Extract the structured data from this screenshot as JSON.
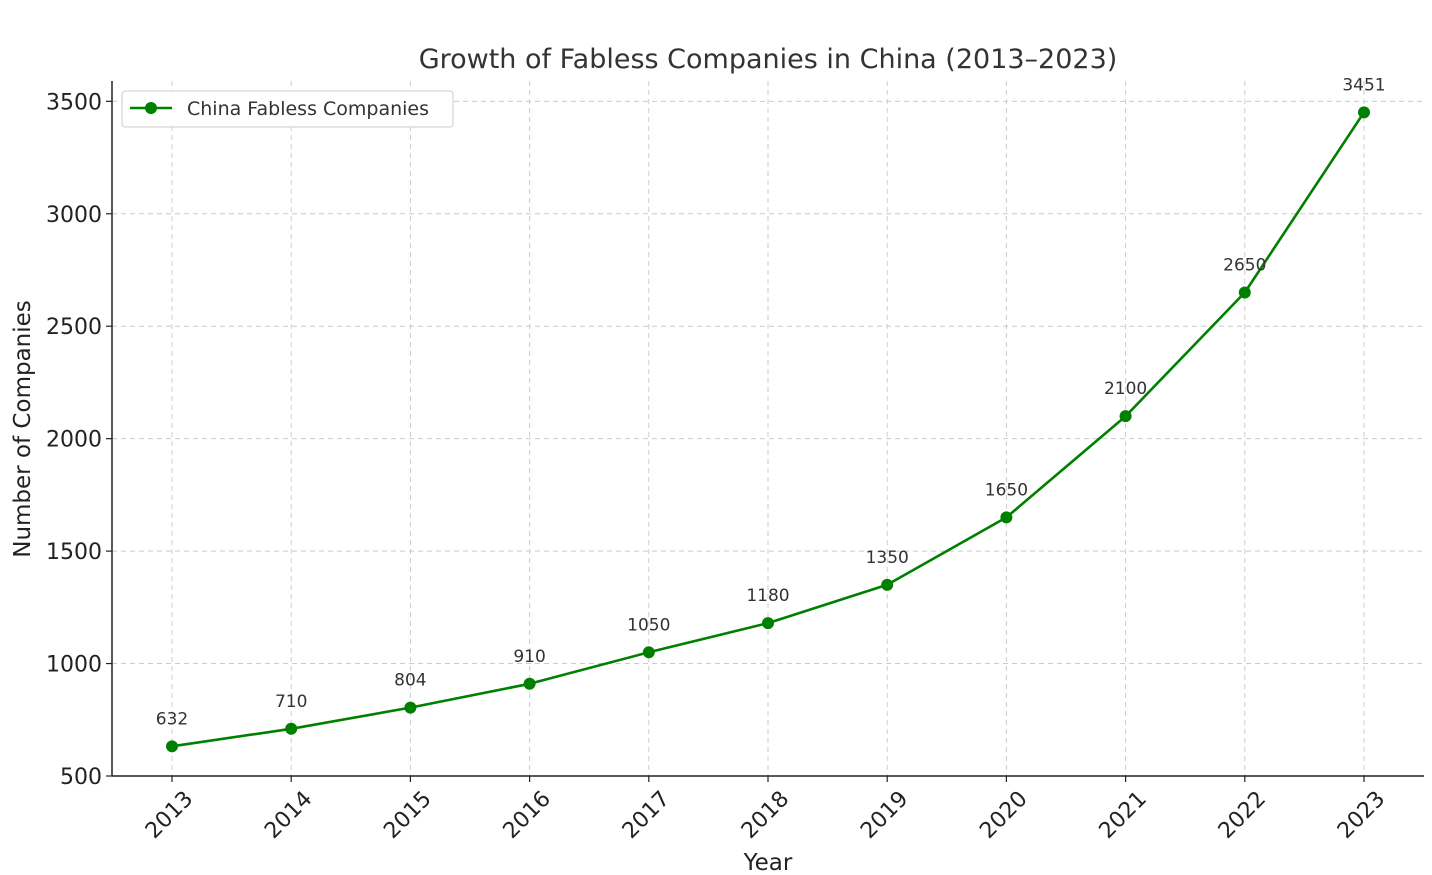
{
  "chart_data": {
    "type": "line",
    "title": "Growth of Fabless Companies in China (2013–2023)",
    "xlabel": "Year",
    "ylabel": "Number of Companies",
    "categories": [
      "2013",
      "2014",
      "2015",
      "2016",
      "2017",
      "2018",
      "2019",
      "2020",
      "2021",
      "2022",
      "2023"
    ],
    "series": [
      {
        "name": "China Fabless Companies",
        "values": [
          632,
          710,
          804,
          910,
          1050,
          1180,
          1350,
          1650,
          2100,
          2650,
          3451
        ],
        "color": "#008000",
        "marker": "circle"
      }
    ],
    "ylim": [
      500,
      3600
    ],
    "yticks": [
      500,
      1000,
      1500,
      2000,
      2500,
      3000,
      3500
    ],
    "grid": true,
    "legend_position": "top-left",
    "data_labels": true
  }
}
